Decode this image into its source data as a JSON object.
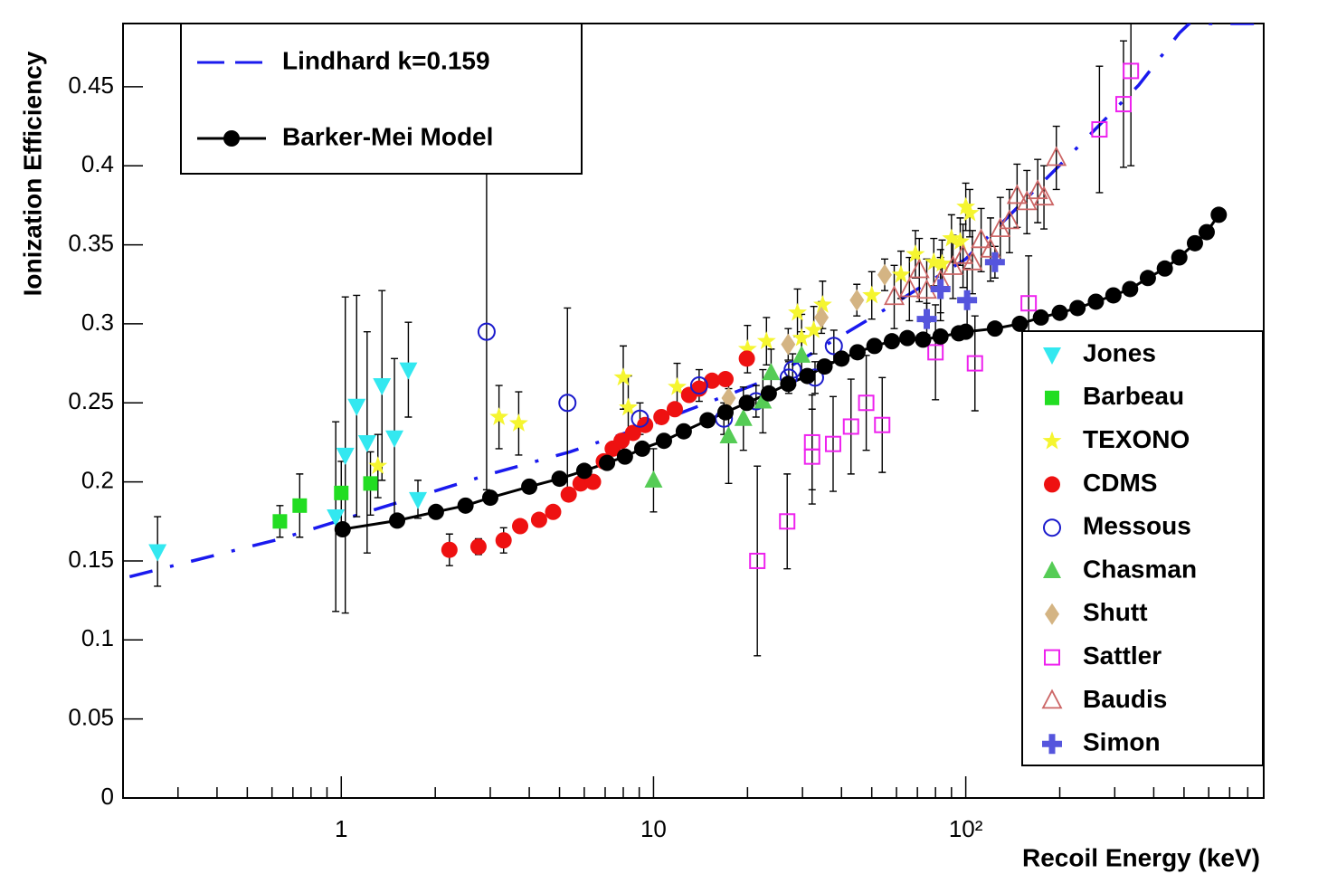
{
  "chart_data": {
    "type": "scatter",
    "xlabel": "Recoil Energy (keV)",
    "ylabel": "Ionization Efficiency",
    "xscale": "log",
    "xlim": [
      0.2,
      900
    ],
    "ylim": [
      0,
      0.49
    ],
    "xticks": [
      1,
      10,
      {
        "value": 100,
        "label": "10²"
      }
    ],
    "xminorticks": [
      0.3,
      0.4,
      0.5,
      0.6,
      0.7,
      0.8,
      0.9,
      2,
      3,
      4,
      5,
      6,
      7,
      8,
      9,
      20,
      30,
      40,
      50,
      60,
      70,
      80,
      90,
      200,
      300,
      400,
      500,
      600,
      700,
      800
    ],
    "yticks": [
      0,
      0.05,
      0.1,
      0.15,
      0.2,
      0.25,
      0.3,
      0.35,
      0.4,
      0.45
    ],
    "series": [
      {
        "name": "Lindhard k=0.159",
        "color": "#1a1aee",
        "marker": "none",
        "line": "dashdot",
        "legend": "top-left",
        "x": [
          0.21,
          0.64,
          1.64,
          3,
          5.4,
          10,
          23.4,
          51,
          100,
          211,
          358,
          483,
          520,
          890
        ],
        "values": [
          0.14,
          0.164,
          0.189,
          0.205,
          0.219,
          0.237,
          0.265,
          0.305,
          0.341,
          0.405,
          0.451,
          0.484,
          0.49,
          0.49
        ]
      },
      {
        "name": "Jones",
        "color": "#33e8f0",
        "marker": "triangle-down",
        "legend": "right",
        "x": [
          0.258,
          0.96,
          1.03,
          1.12,
          1.21,
          1.35,
          1.48,
          1.64,
          1.76
        ],
        "values": [
          0.156,
          0.178,
          0.217,
          0.248,
          0.225,
          0.261,
          0.228,
          0.271,
          0.189
        ],
        "yerr": [
          0.022,
          0.06,
          0.1,
          0.07,
          0.07,
          0.06,
          0.05,
          0.03,
          0.012
        ]
      },
      {
        "name": "Barbeau",
        "color": "#22dd22",
        "marker": "square",
        "legend": "right",
        "x": [
          0.636,
          0.736,
          1.0,
          1.24
        ],
        "values": [
          0.175,
          0.185,
          0.193,
          0.199
        ],
        "yerr": [
          0.01,
          0.02,
          0.02,
          0.02
        ]
      },
      {
        "name": "TEXONO",
        "color": "#f5f530",
        "marker": "star",
        "legend": "right",
        "x": [
          1.31,
          3.2,
          3.7,
          8.0,
          8.3,
          11.9,
          20,
          23,
          28.9,
          29.8,
          34.8,
          32.6,
          50,
          62,
          69,
          79,
          84,
          90,
          96,
          103,
          100
        ],
        "values": [
          0.21,
          0.241,
          0.237,
          0.266,
          0.247,
          0.26,
          0.284,
          0.289,
          0.307,
          0.291,
          0.312,
          0.296,
          0.318,
          0.331,
          0.344,
          0.339,
          0.338,
          0.354,
          0.352,
          0.37,
          0.374
        ],
        "yerr": [
          0.02,
          0.02,
          0.02,
          0.02,
          0.02,
          0.015,
          0.015,
          0.015,
          0.015,
          0.015,
          0.015,
          0.015,
          0.015,
          0.015,
          0.015,
          0.015,
          0.015,
          0.015,
          0.015,
          0.015,
          0.015
        ]
      },
      {
        "name": "CDMS",
        "color": "#ee1111",
        "marker": "circle",
        "legend": "right",
        "x": [
          2.22,
          2.75,
          3.31,
          3.74,
          4.3,
          4.77,
          5.35,
          5.84,
          6.4,
          6.93,
          7.4,
          7.9,
          8.6,
          9.4,
          10.6,
          11.7,
          13.0,
          14.0,
          15.4,
          17.0,
          19.9
        ],
        "values": [
          0.157,
          0.159,
          0.163,
          0.172,
          0.176,
          0.181,
          0.192,
          0.199,
          0.2,
          0.213,
          0.221,
          0.226,
          0.231,
          0.236,
          0.241,
          0.246,
          0.255,
          0.259,
          0.264,
          0.265,
          0.278
        ],
        "yerr": [
          0.01,
          0.005,
          0.008,
          null,
          null,
          null,
          null,
          null,
          null,
          null,
          null,
          null,
          null,
          null,
          null,
          null,
          null,
          null,
          null,
          null,
          null
        ]
      },
      {
        "name": "Messous",
        "color": "#1a1acc",
        "marker": "circle-open",
        "legend": "right",
        "x": [
          2.92,
          5.3,
          9.05,
          14.0,
          16.8,
          21.3,
          27.1,
          27.9,
          32.9,
          37.8
        ],
        "values": [
          0.295,
          0.25,
          0.24,
          0.261,
          0.24,
          0.251,
          0.266,
          0.271,
          0.266,
          0.286
        ],
        "yerr": [
          0.1,
          0.06,
          0.01,
          0.01,
          0.01,
          0.01,
          0.01,
          0.01,
          0.01,
          0.01
        ]
      },
      {
        "name": "Chasman",
        "color": "#55cc55",
        "marker": "triangle-up",
        "legend": "right",
        "x": [
          10,
          17.4,
          19.4,
          22.4,
          23.8,
          29.8
        ],
        "values": [
          0.201,
          0.229,
          0.24,
          0.251,
          0.269,
          0.28
        ],
        "yerr": [
          0.02,
          0.03,
          0.02,
          0.02,
          0.015,
          0.015
        ]
      },
      {
        "name": "Shutt",
        "color": "#d4b483",
        "marker": "diamond",
        "legend": "right",
        "x": [
          17.4,
          27.0,
          34.5,
          44.8,
          55
        ],
        "values": [
          0.253,
          0.287,
          0.304,
          0.315,
          0.331
        ],
        "yerr": [
          0.01,
          0.01,
          0.01,
          0.01,
          0.01
        ]
      },
      {
        "name": "Sattler",
        "color": "#ee22ee",
        "marker": "square-open",
        "legend": "right",
        "x": [
          21.5,
          26.8,
          32.2,
          32.2,
          37.6,
          42.9,
          48,
          54,
          80,
          107,
          159,
          268,
          320,
          338
        ],
        "values": [
          0.15,
          0.175,
          0.225,
          0.216,
          0.224,
          0.235,
          0.25,
          0.236,
          0.282,
          0.275,
          0.313,
          0.423,
          0.439,
          0.46
        ],
        "yerr": [
          0.06,
          0.03,
          0.03,
          0.03,
          0.03,
          0.03,
          0.03,
          0.03,
          0.03,
          0.03,
          0.03,
          0.04,
          0.04,
          0.06
        ]
      },
      {
        "name": "Baudis",
        "color": "#cc6666",
        "marker": "triangle-up-open",
        "legend": "right",
        "x": [
          59,
          66,
          71,
          75,
          83,
          91,
          98,
          105,
          112,
          120,
          129,
          138,
          146,
          157,
          170,
          178,
          195
        ],
        "values": [
          0.317,
          0.322,
          0.334,
          0.321,
          0.327,
          0.336,
          0.343,
          0.339,
          0.353,
          0.347,
          0.36,
          0.365,
          0.381,
          0.377,
          0.384,
          0.38,
          0.405
        ],
        "yerr": [
          0.02,
          0.02,
          0.02,
          0.02,
          0.02,
          0.02,
          0.02,
          0.02,
          0.02,
          0.02,
          0.02,
          0.02,
          0.02,
          0.02,
          0.02,
          0.02,
          0.02
        ]
      },
      {
        "name": "Simon",
        "color": "#5555dd",
        "marker": "plus",
        "legend": "right",
        "x": [
          75,
          83,
          101,
          124
        ],
        "values": [
          0.303,
          0.322,
          0.315,
          0.339
        ],
        "yerr": [
          0.01,
          0.02,
          0.02,
          0.01
        ]
      },
      {
        "name": "Barker-Mei Model",
        "color": "#000000",
        "marker": "circle",
        "line": "solid",
        "legend": "top-left",
        "x": [
          1.01,
          1.51,
          2.01,
          2.5,
          3.0,
          4.0,
          5.0,
          6.0,
          7.1,
          8.1,
          9.2,
          10.8,
          12.5,
          14.9,
          17.0,
          19.9,
          23.4,
          27.0,
          31.1,
          35.3,
          40,
          45,
          51,
          58,
          65,
          73,
          83,
          95,
          100,
          124,
          149,
          174,
          200,
          228,
          261,
          297,
          336,
          383,
          434,
          483,
          542,
          591,
          646
        ],
        "values": [
          0.17,
          0.1755,
          0.181,
          0.185,
          0.19,
          0.197,
          0.202,
          0.207,
          0.212,
          0.216,
          0.221,
          0.226,
          0.232,
          0.239,
          0.244,
          0.25,
          0.256,
          0.262,
          0.267,
          0.273,
          0.278,
          0.282,
          0.286,
          0.289,
          0.291,
          0.29,
          0.292,
          0.294,
          0.295,
          0.297,
          0.3,
          0.304,
          0.307,
          0.31,
          0.314,
          0.318,
          0.322,
          0.329,
          0.335,
          0.342,
          0.351,
          0.358,
          0.369
        ]
      }
    ]
  }
}
